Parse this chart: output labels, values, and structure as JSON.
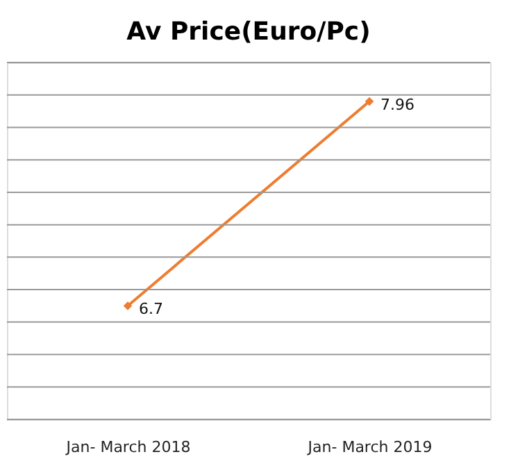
{
  "chart_data": {
    "type": "line",
    "title": "Av Price(Euro/Pc)",
    "categories": [
      "Jan- March 2018",
      "Jan- March 2019"
    ],
    "series": [
      {
        "color": "#ed7d31",
        "values": [
          6.7,
          7.96
        ]
      }
    ],
    "ylim": [
      6.0,
      8.2
    ],
    "yticks": [
      {
        "value": 6.0,
        "label": null
      },
      {
        "value": 6.2,
        "label": null
      },
      {
        "value": 6.4,
        "label": null
      },
      {
        "value": 6.6,
        "label": null
      },
      {
        "value": 6.8,
        "label": null
      },
      {
        "value": 7.0,
        "label": null
      },
      {
        "value": 7.2,
        "label": null
      },
      {
        "value": 7.4,
        "label": null
      },
      {
        "value": 7.6,
        "label": null
      },
      {
        "value": 7.8,
        "label": null
      },
      {
        "value": 8.0,
        "label": null
      },
      {
        "value": 8.2,
        "label": null
      }
    ],
    "tick_labels": "x",
    "grid": "y",
    "marker": "diamond",
    "line_style": "solid",
    "data_labels": true
  }
}
